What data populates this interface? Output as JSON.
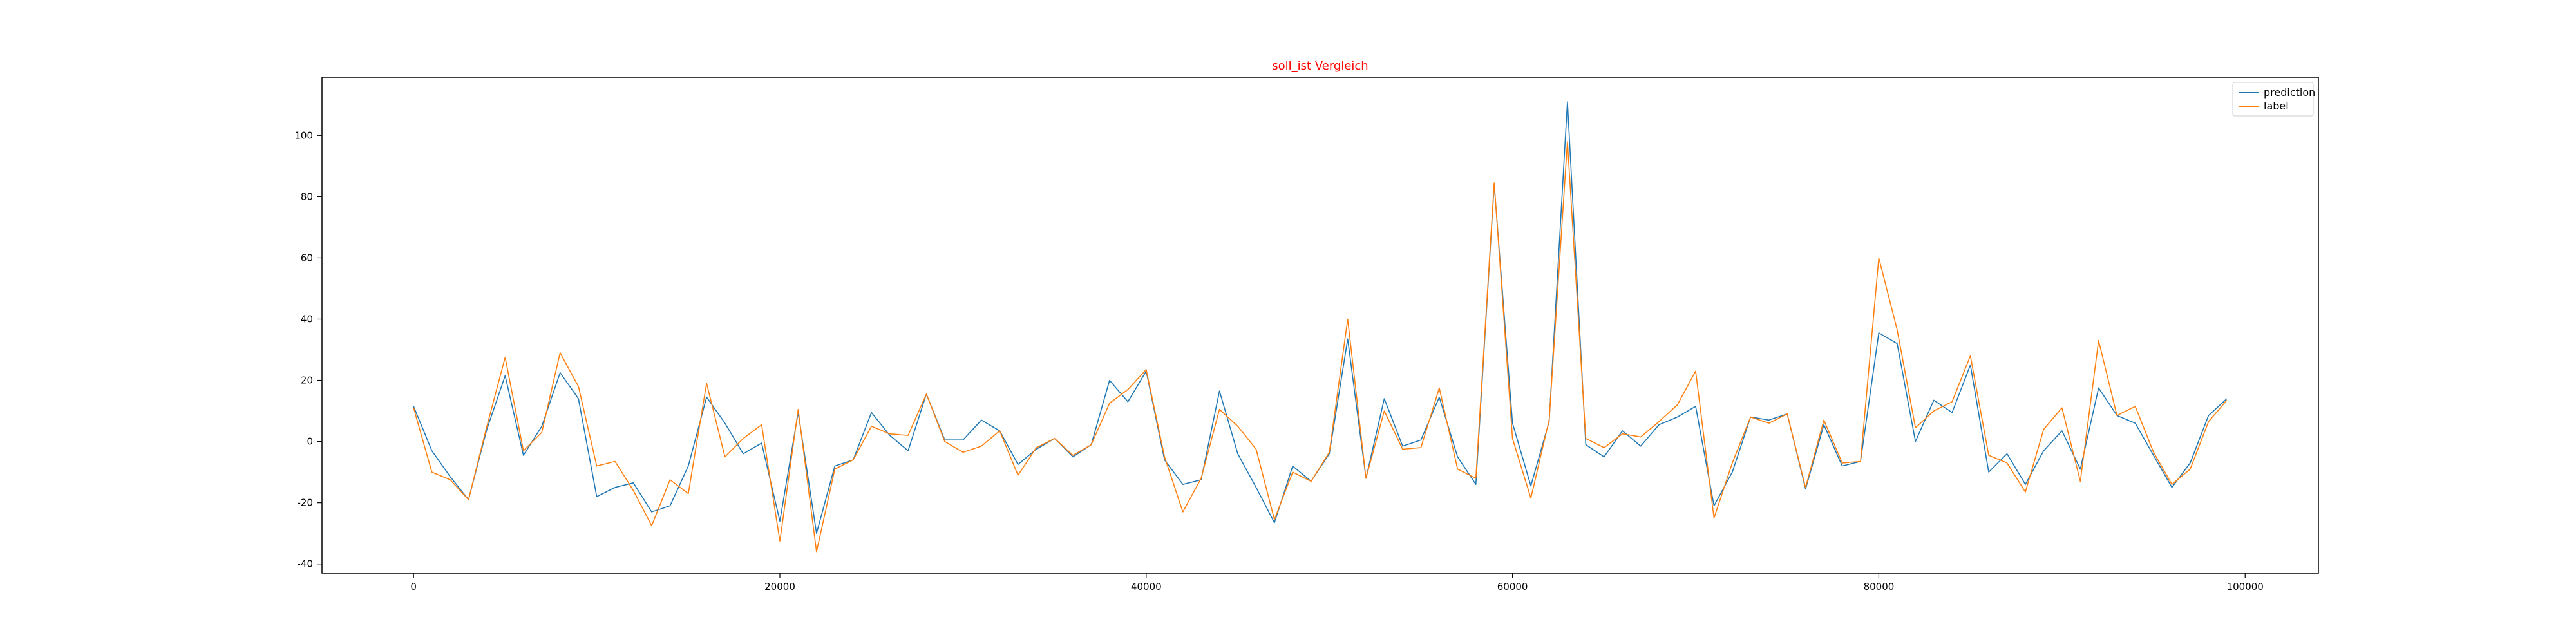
{
  "chart_data": {
    "type": "line",
    "title": "soll_ist Vergleich",
    "title_color": "#ff0000",
    "xlabel": "",
    "ylabel": "",
    "xlim": [
      -5000,
      104000
    ],
    "ylim": [
      -43,
      119
    ],
    "xticks": [
      0,
      20000,
      40000,
      60000,
      80000,
      100000
    ],
    "yticks": [
      -40,
      -20,
      0,
      20,
      40,
      60,
      80,
      100
    ],
    "grid": false,
    "legend_position": "top-right",
    "x": [
      0,
      1000,
      2000,
      3000,
      4000,
      5000,
      6000,
      7000,
      8000,
      9000,
      10000,
      11000,
      12000,
      13000,
      14000,
      15000,
      16000,
      17000,
      18000,
      19000,
      20000,
      21000,
      22000,
      23000,
      24000,
      25000,
      26000,
      27000,
      28000,
      29000,
      30000,
      31000,
      32000,
      33000,
      34000,
      35000,
      36000,
      37000,
      38000,
      39000,
      40000,
      41000,
      42000,
      43000,
      44000,
      45000,
      46000,
      47000,
      48000,
      49000,
      50000,
      51000,
      52000,
      53000,
      54000,
      55000,
      56000,
      57000,
      58000,
      59000,
      60000,
      61000,
      62000,
      63000,
      64000,
      65000,
      66000,
      67000,
      68000,
      69000,
      70000,
      71000,
      72000,
      73000,
      74000,
      75000,
      76000,
      77000,
      78000,
      79000,
      80000,
      81000,
      82000,
      83000,
      84000,
      85000,
      86000,
      87000,
      88000,
      89000,
      90000,
      91000,
      92000,
      93000,
      94000,
      95000,
      96000,
      97000,
      98000,
      99000
    ],
    "series": [
      {
        "name": "prediction",
        "color": "#1f77b4",
        "values": [
          11.5,
          -3,
          -11.5,
          -19,
          4,
          21.5,
          -4.5,
          5,
          22.5,
          14,
          -18,
          -15,
          -13.5,
          -23,
          -21,
          -8,
          14.5,
          6,
          -4,
          -0.5,
          -26,
          9.5,
          -30,
          -8,
          -6,
          9.5,
          2,
          -3,
          15.5,
          0.5,
          0.5,
          7,
          3.5,
          -7.5,
          -2.5,
          1,
          -5,
          -1,
          20,
          13,
          23,
          -6,
          -14,
          -12.5,
          16.5,
          -4,
          -15,
          -26.5,
          -8,
          -13,
          -4,
          33.5,
          -12,
          14,
          -1.5,
          0.5,
          14.5,
          -5,
          -14,
          84,
          6,
          -14.5,
          6.5,
          111,
          -1,
          -5,
          3.5,
          -1.5,
          5.5,
          8,
          11.5,
          -21,
          -10,
          8,
          7,
          9,
          -15.5,
          5.5,
          -8,
          -6.5,
          35.5,
          32,
          0,
          13.5,
          9.5,
          25,
          -10,
          -4,
          -14,
          -3,
          3.5,
          -9,
          17.5,
          8.5,
          6,
          -4.5,
          -15,
          -7,
          8.5,
          14
        ]
      },
      {
        "name": "label",
        "color": "#ff7f0e",
        "values": [
          11,
          -10,
          -12.5,
          -19,
          5,
          27.5,
          -3,
          3,
          29,
          18,
          -8,
          -6.5,
          -16,
          -27.5,
          -12.5,
          -17,
          19,
          -5,
          1,
          5.5,
          -32.5,
          10.5,
          -36,
          -9,
          -6,
          5,
          2.5,
          2,
          15.5,
          0,
          -3.5,
          -1.5,
          3.5,
          -11,
          -2,
          1,
          -4.5,
          -1,
          12.5,
          17,
          23.5,
          -5,
          -23,
          -12,
          10.5,
          5,
          -2.5,
          -25.5,
          -10,
          -13,
          -3.5,
          40,
          -12,
          10,
          -2.5,
          -2,
          17.5,
          -9,
          -12,
          84.5,
          1,
          -18.5,
          7,
          98,
          1,
          -2,
          2.5,
          1.5,
          6.5,
          12,
          23,
          -25,
          -7,
          8,
          6,
          9,
          -15,
          7,
          -7,
          -6.5,
          60,
          36.5,
          4.5,
          10,
          13,
          28,
          -4.5,
          -7,
          -16.5,
          4,
          11,
          -13,
          33,
          8.5,
          11.5,
          -3.5,
          -14,
          -9,
          6.5,
          13.5
        ]
      }
    ]
  }
}
